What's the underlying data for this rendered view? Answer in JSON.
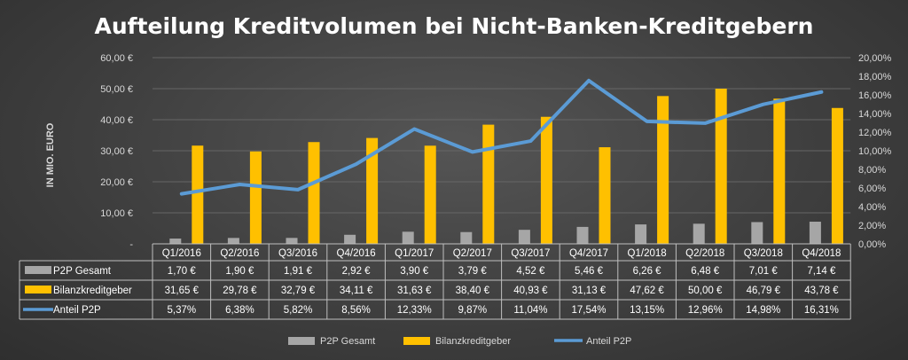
{
  "chart_data": {
    "type": "bar",
    "title": "Aufteilung Kreditvolumen bei Nicht-Banken-Kreditgebern",
    "ylabel": "IN MIO. EURO",
    "ylim": [
      0,
      60
    ],
    "y2lim": [
      0,
      20
    ],
    "y_ticks": [
      "-",
      "10,00 €",
      "20,00 €",
      "30,00 €",
      "40,00 €",
      "50,00 €",
      "60,00 €"
    ],
    "y2_ticks": [
      "0,00%",
      "2,00%",
      "4,00%",
      "6,00%",
      "8,00%",
      "10,00%",
      "12,00%",
      "14,00%",
      "16,00%",
      "18,00%",
      "20,00%"
    ],
    "grid": true,
    "legend_position": "bottom",
    "categories": [
      "Q1/2016",
      "Q2/2016",
      "Q3/2016",
      "Q4/2016",
      "Q1/2017",
      "Q2/2017",
      "Q3/2017",
      "Q4/2017",
      "Q1/2018",
      "Q2/2018",
      "Q3/2018",
      "Q4/2018"
    ],
    "series": [
      {
        "name": "P2P Gesamt",
        "kind": "bar",
        "axis": "left",
        "color": "#a6a6a6",
        "values": [
          1.7,
          1.9,
          1.91,
          2.92,
          3.9,
          3.79,
          4.52,
          5.46,
          6.26,
          6.48,
          7.01,
          7.14
        ],
        "labels": [
          "1,70 €",
          "1,90 €",
          "1,91 €",
          "2,92 €",
          "3,90 €",
          "3,79 €",
          "4,52 €",
          "5,46 €",
          "6,26 €",
          "6,48 €",
          "7,01 €",
          "7,14 €"
        ]
      },
      {
        "name": "Bilanzkreditgeber",
        "kind": "bar",
        "axis": "left",
        "color": "#ffc000",
        "values": [
          31.65,
          29.78,
          32.79,
          34.11,
          31.63,
          38.4,
          40.93,
          31.13,
          47.62,
          50.0,
          46.79,
          43.78
        ],
        "labels": [
          "31,65 €",
          "29,78 €",
          "32,79 €",
          "34,11 €",
          "31,63 €",
          "38,40 €",
          "40,93 €",
          "31,13 €",
          "47,62 €",
          "50,00 €",
          "46,79 €",
          "43,78 €"
        ]
      },
      {
        "name": "Anteil P2P",
        "kind": "line",
        "axis": "right",
        "color": "#5b9bd5",
        "values": [
          5.37,
          6.38,
          5.82,
          8.56,
          12.33,
          9.87,
          11.04,
          17.54,
          13.15,
          12.96,
          14.98,
          16.31
        ],
        "labels": [
          "5,37%",
          "6,38%",
          "5,82%",
          "8,56%",
          "12,33%",
          "9,87%",
          "11,04%",
          "17,54%",
          "13,15%",
          "12,96%",
          "14,98%",
          "16,31%"
        ]
      }
    ]
  }
}
